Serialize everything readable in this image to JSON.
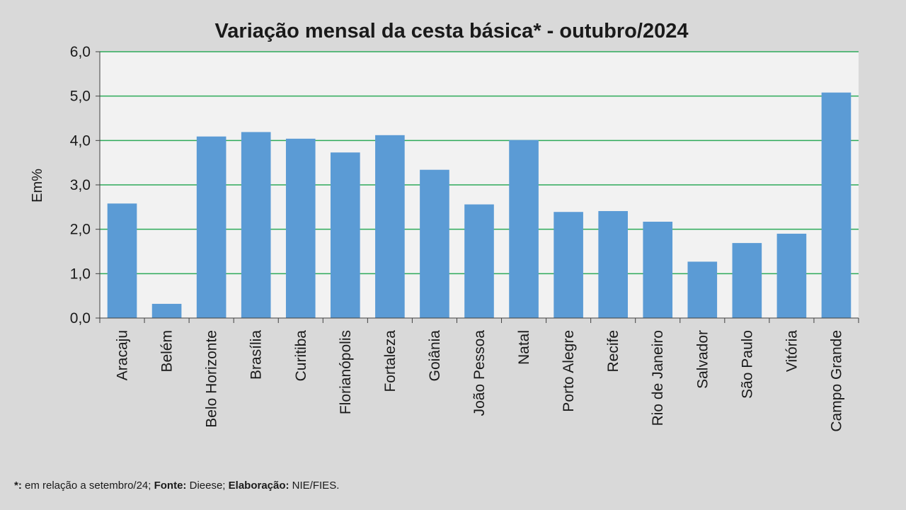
{
  "chart_data": {
    "type": "bar",
    "title": "Variação mensal da cesta básica* - outubro/2024",
    "xlabel": "",
    "ylabel": "Em%",
    "ylim": [
      0,
      6
    ],
    "ytick_step": 1,
    "ytick_labels": [
      "0,0",
      "1,0",
      "2,0",
      "3,0",
      "4,0",
      "5,0",
      "6,0"
    ],
    "grid": true,
    "categories": [
      "Aracaju",
      "Belém",
      "Belo Horizonte",
      "Brasília",
      "Curitiba",
      "Florianópolis",
      "Fortaleza",
      "Goiânia",
      "João Pessoa",
      "Natal",
      "Porto Alegre",
      "Recife",
      "Rio de Janeiro",
      "Salvador",
      "São Paulo",
      "Vitória",
      "Campo Grande"
    ],
    "values": [
      2.58,
      0.32,
      4.09,
      4.19,
      4.04,
      3.73,
      4.12,
      3.34,
      2.56,
      4.01,
      2.39,
      2.41,
      2.17,
      1.27,
      1.69,
      1.9,
      5.08
    ]
  },
  "colors": {
    "bar": "#5b9bd5",
    "grid": "#2eaa5a",
    "plot_background": "#f2f2f2",
    "page_background": "#d9d9d9",
    "axis": "#404040"
  },
  "footnote": {
    "marker": "*:",
    "text1": " em  relação a setembro/24;",
    "source_label": "Fonte:",
    "source_value": " Dieese;",
    "elab_label": "Elaboração:",
    "elab_value": "  NIE/FIES."
  }
}
